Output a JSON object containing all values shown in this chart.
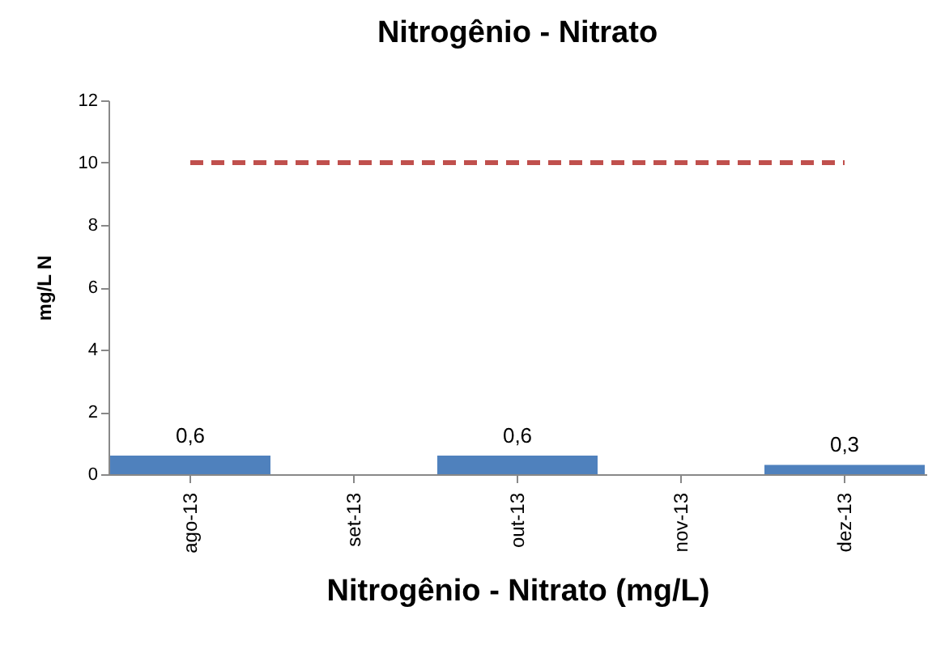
{
  "chart_data": {
    "type": "bar",
    "title": "Nitrogênio - Nitrato",
    "xlabel": "Nitrogênio - Nitrato (mg/L)",
    "ylabel": "mg/L N",
    "categories": [
      "ago-13",
      "set-13",
      "out-13",
      "nov-13",
      "dez-13"
    ],
    "series": [
      {
        "color": "#4f81bd",
        "values": [
          0.6,
          null,
          0.6,
          null,
          0.3
        ],
        "value_labels": [
          "0,6",
          null,
          "0,6",
          null,
          "0,3"
        ]
      },
      {
        "type": "line",
        "color": "#c0504d",
        "line_style": "dashed",
        "values": [
          10,
          10,
          10,
          10,
          10
        ]
      }
    ],
    "ylim": [
      0,
      12
    ],
    "yticks": [
      0,
      2,
      4,
      6,
      8,
      10,
      12
    ]
  }
}
